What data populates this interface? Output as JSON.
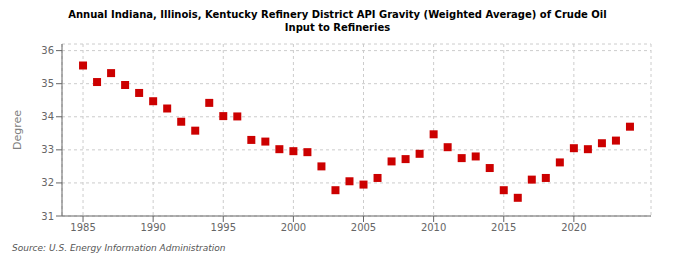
{
  "chart_data": {
    "type": "scatter",
    "title": "Annual Indiana, Illinois, Kentucky Refinery District API Gravity (Weighted Average) of Crude Oil\nInput to Refineries",
    "y_label": "Degree",
    "annotations": [
      "Source: U.S. Energy Information Administration"
    ],
    "color": "#cc0000",
    "marker": "square",
    "grid": true,
    "xlim": [
      1983.5,
      2025.5
    ],
    "ylim": [
      31,
      36.2
    ],
    "xticks": [
      1985,
      1990,
      1995,
      2000,
      2005,
      2010,
      2015,
      2020
    ],
    "yticks": [
      31,
      32,
      33,
      34,
      35,
      36
    ],
    "x": [
      1985,
      1986,
      1987,
      1988,
      1989,
      1990,
      1991,
      1992,
      1993,
      1994,
      1995,
      1996,
      1997,
      1998,
      1999,
      2000,
      2001,
      2002,
      2003,
      2004,
      2005,
      2006,
      2007,
      2008,
      2009,
      2010,
      2011,
      2012,
      2013,
      2014,
      2015,
      2016,
      2017,
      2018,
      2019,
      2020,
      2021,
      2022,
      2023,
      2024
    ],
    "values": [
      35.55,
      35.05,
      35.32,
      34.96,
      34.72,
      34.47,
      34.25,
      33.85,
      33.58,
      34.42,
      34.02,
      34.01,
      33.3,
      33.25,
      33.02,
      32.96,
      32.93,
      32.5,
      31.78,
      32.05,
      31.95,
      32.15,
      32.65,
      32.72,
      32.88,
      33.47,
      33.08,
      32.75,
      32.8,
      32.45,
      31.78,
      31.55,
      32.1,
      32.15,
      32.62,
      33.05,
      33.02,
      33.2,
      33.28,
      33.7
    ]
  }
}
